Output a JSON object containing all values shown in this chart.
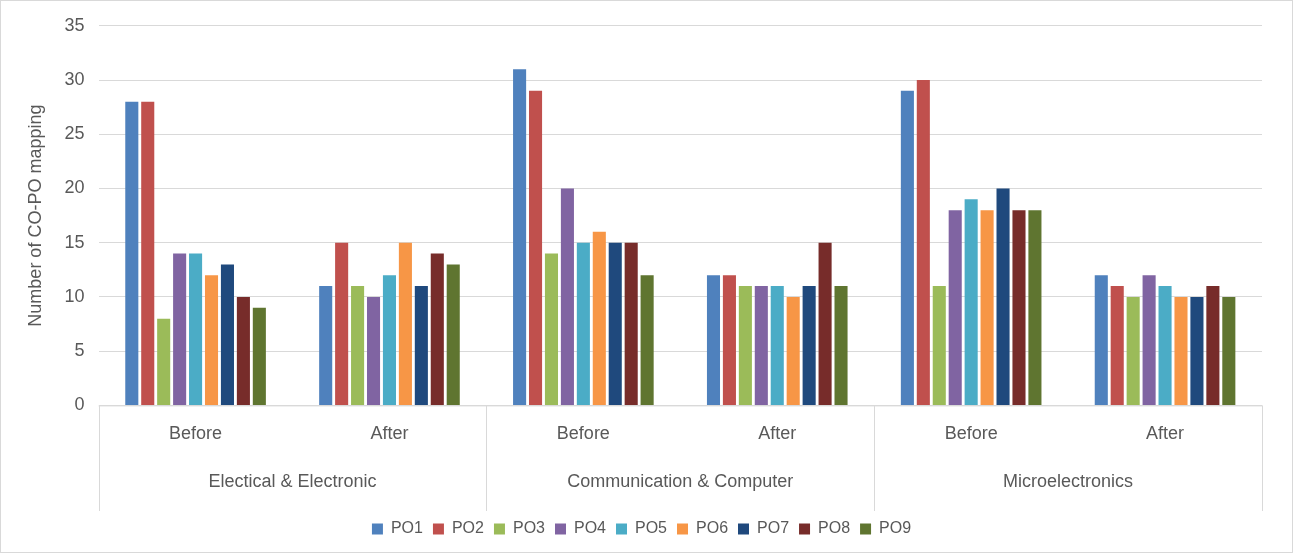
{
  "chart_data": {
    "type": "bar",
    "ylabel": "Number of CO-PO mapping",
    "categories": [
      "Before",
      "After",
      "Before",
      "After",
      "Before",
      "After"
    ],
    "annotations": [
      "Electical & Electronic",
      "Communication & Computer",
      "Microelectronics"
    ],
    "series": [
      {
        "name": "PO1",
        "color": "#4f81bd",
        "values": [
          28,
          11,
          31,
          12,
          29,
          12
        ]
      },
      {
        "name": "PO2",
        "color": "#c0504d",
        "values": [
          28,
          15,
          29,
          12,
          30,
          11
        ]
      },
      {
        "name": "PO3",
        "color": "#9bbb59",
        "values": [
          8,
          11,
          14,
          11,
          11,
          10
        ]
      },
      {
        "name": "PO4",
        "color": "#8064a2",
        "values": [
          14,
          10,
          20,
          11,
          18,
          12
        ]
      },
      {
        "name": "PO5",
        "color": "#4bacc6",
        "values": [
          14,
          12,
          15,
          11,
          19,
          11
        ]
      },
      {
        "name": "PO6",
        "color": "#f79646",
        "values": [
          12,
          15,
          16,
          10,
          18,
          10
        ]
      },
      {
        "name": "PO7",
        "color": "#1f497d",
        "values": [
          13,
          11,
          15,
          11,
          20,
          10
        ]
      },
      {
        "name": "PO8",
        "color": "#772c2a",
        "values": [
          10,
          14,
          15,
          15,
          18,
          11
        ]
      },
      {
        "name": "PO9",
        "color": "#5f7530",
        "values": [
          9,
          13,
          12,
          11,
          18,
          10
        ]
      }
    ],
    "ylim": [
      0,
      35
    ],
    "yticks": [
      0,
      5,
      10,
      15,
      20,
      25,
      30,
      35
    ],
    "grid": "y",
    "legend": "bottom"
  }
}
